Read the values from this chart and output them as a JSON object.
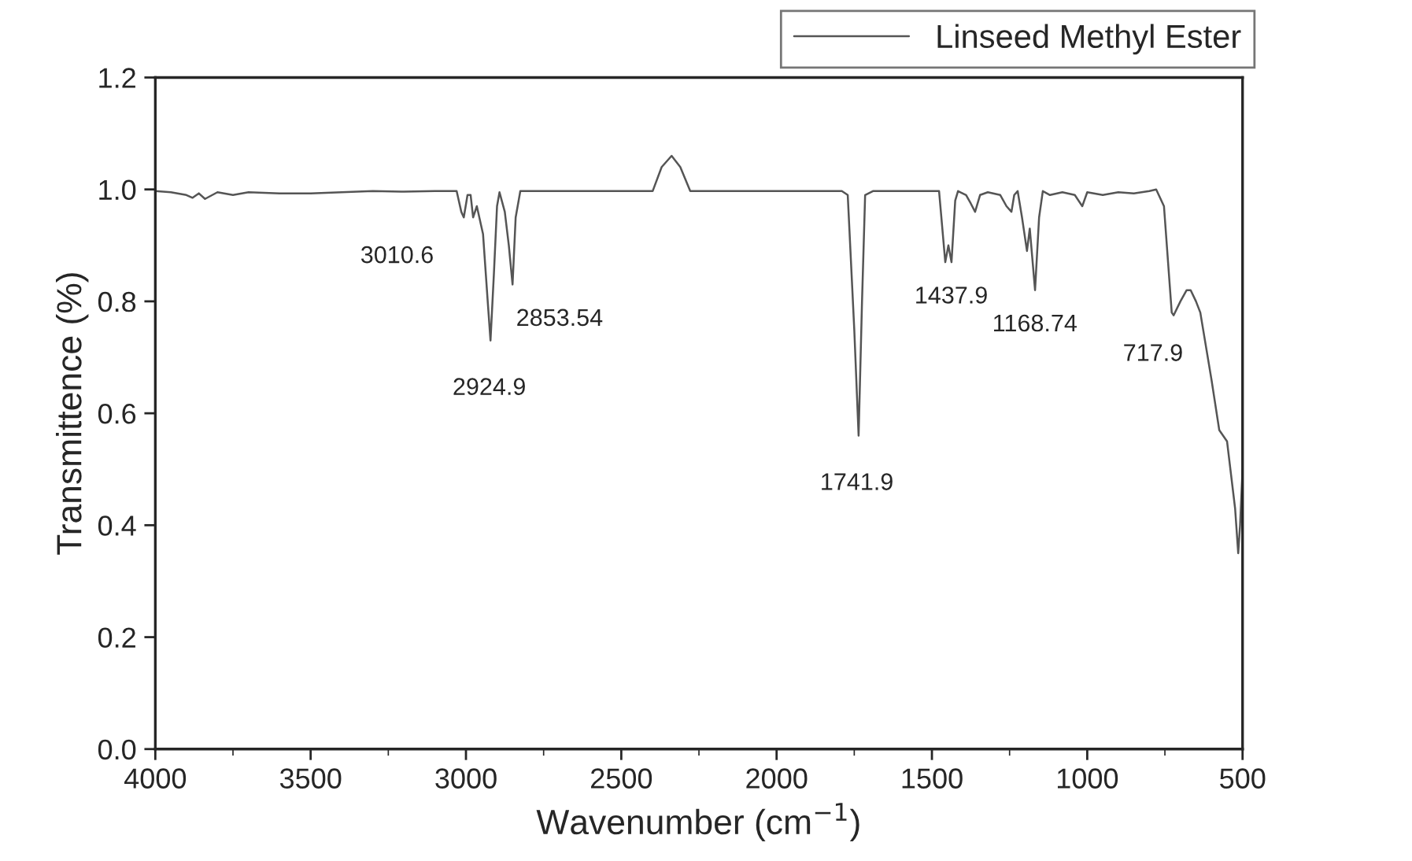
{
  "chart_data": {
    "type": "line",
    "xlabel": "Wavenumber (cm$^{−1}$)",
    "ylabel": "Transmittence (%)",
    "xlim": [
      4000,
      500
    ],
    "ylim": [
      0.0,
      1.2
    ],
    "xticks": [
      4000,
      3500,
      3000,
      2500,
      2000,
      1500,
      1000,
      500
    ],
    "yticks": [
      {
        "value": 0.0,
        "label": "0.0"
      },
      0.2,
      0.4,
      0.6,
      0.8,
      {
        "value": 1.0,
        "label": "1.0"
      },
      1.2
    ],
    "grid": false,
    "legend": "top right",
    "marker": "none",
    "line_style": "solid",
    "series": [
      {
        "name": "Linseed Methyl Ester",
        "color": "#555555",
        "x": [
          4000,
          3950,
          3900,
          3880,
          3860,
          3840,
          3800,
          3750,
          3700,
          3600,
          3500,
          3400,
          3300,
          3200,
          3100,
          3030,
          3015,
          3007,
          2995,
          2985,
          2977,
          2965,
          2945,
          2930,
          2921,
          2910,
          2900,
          2892,
          2875,
          2862,
          2850,
          2840,
          2825,
          2700,
          2500,
          2399,
          2370,
          2338,
          2310,
          2278,
          2100,
          1900,
          1790,
          1771,
          1750,
          1736,
          1725,
          1715,
          1690,
          1600,
          1500,
          1477,
          1457,
          1447,
          1437,
          1425,
          1416,
          1390,
          1375,
          1361,
          1345,
          1320,
          1280,
          1260,
          1244,
          1235,
          1224,
          1210,
          1194,
          1185,
          1168,
          1155,
          1143,
          1120,
          1080,
          1040,
          1016,
          1000,
          950,
          900,
          850,
          800,
          778,
          753,
          728,
          722,
          700,
          680,
          667,
          650,
          636,
          600,
          575,
          550,
          524,
          514,
          508,
          500
        ],
        "values": [
          0.997,
          0.995,
          0.99,
          0.985,
          0.993,
          0.983,
          0.995,
          0.99,
          0.995,
          0.993,
          0.993,
          0.995,
          0.997,
          0.996,
          0.997,
          0.997,
          0.96,
          0.95,
          0.99,
          0.99,
          0.95,
          0.97,
          0.92,
          0.8,
          0.73,
          0.85,
          0.97,
          0.995,
          0.96,
          0.9,
          0.83,
          0.95,
          0.997,
          0.997,
          0.997,
          0.997,
          1.04,
          1.06,
          1.04,
          0.997,
          0.997,
          0.997,
          0.997,
          0.99,
          0.75,
          0.56,
          0.8,
          0.99,
          0.997,
          0.997,
          0.997,
          0.997,
          0.87,
          0.9,
          0.87,
          0.98,
          0.997,
          0.99,
          0.975,
          0.96,
          0.99,
          0.995,
          0.99,
          0.97,
          0.96,
          0.99,
          0.997,
          0.95,
          0.89,
          0.93,
          0.82,
          0.95,
          0.997,
          0.99,
          0.995,
          0.99,
          0.97,
          0.995,
          0.99,
          0.995,
          0.993,
          0.997,
          1.0,
          0.97,
          0.78,
          0.775,
          0.8,
          0.82,
          0.82,
          0.8,
          0.78,
          0.66,
          0.57,
          0.55,
          0.43,
          0.35,
          0.4,
          0.5
        ]
      }
    ],
    "annotations": [
      {
        "text": "3010.6",
        "x": 3010.6,
        "y": 0.95
      },
      {
        "text": "2924.9",
        "x": 2924.9,
        "y": 0.73
      },
      {
        "text": "2853.54",
        "x": 2853.54,
        "y": 0.83
      },
      {
        "text": "1741.9",
        "x": 1741.9,
        "y": 0.56
      },
      {
        "text": "1437.9",
        "x": 1437.9,
        "y": 0.87
      },
      {
        "text": "1168.74",
        "x": 1168.74,
        "y": 0.82
      },
      {
        "text": "717.9",
        "x": 717.9,
        "y": 0.775
      }
    ]
  }
}
